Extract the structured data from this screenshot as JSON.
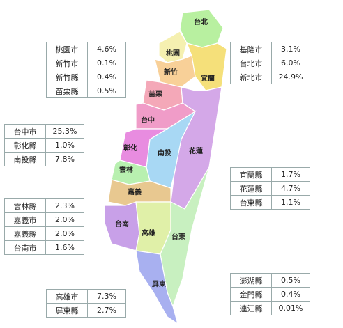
{
  "regions": [
    {
      "label": "台北"
    },
    {
      "label": "桃園"
    },
    {
      "label": "宜蘭"
    },
    {
      "label": "新竹"
    },
    {
      "label": "苗栗"
    },
    {
      "label": "台中"
    },
    {
      "label": "花蓮"
    },
    {
      "label": "南投"
    },
    {
      "label": "彰化"
    },
    {
      "label": "雲林"
    },
    {
      "label": "嘉義"
    },
    {
      "label": "台南"
    },
    {
      "label": "高雄"
    },
    {
      "label": "台東"
    },
    {
      "label": "屏東"
    }
  ],
  "tables": [
    {
      "rows": [
        [
          "桃園市",
          "4.6%"
        ],
        [
          "新竹市",
          "0.1%"
        ],
        [
          "新竹縣",
          "0.4%"
        ],
        [
          "苗栗縣",
          "0.5%"
        ]
      ]
    },
    {
      "rows": [
        [
          "基隆市",
          "3.1%"
        ],
        [
          "台北市",
          "6.0%"
        ],
        [
          "新北市",
          "24.9%"
        ]
      ]
    },
    {
      "rows": [
        [
          "台中市",
          "25.3%"
        ],
        [
          "彰化縣",
          "1.0%"
        ],
        [
          "南投縣",
          "7.8%"
        ]
      ]
    },
    {
      "rows": [
        [
          "宜蘭縣",
          "1.7%"
        ],
        [
          "花蓮縣",
          "4.7%"
        ],
        [
          "台東縣",
          "1.1%"
        ]
      ]
    },
    {
      "rows": [
        [
          "雲林縣",
          "2.3%"
        ],
        [
          "嘉義市",
          "2.0%"
        ],
        [
          "嘉義縣",
          "2.0%"
        ],
        [
          "台南市",
          "1.6%"
        ]
      ]
    },
    {
      "rows": [
        [
          "高雄市",
          "7.3%"
        ],
        [
          "屏東縣",
          "2.7%"
        ]
      ]
    },
    {
      "rows": [
        [
          "澎湖縣",
          "0.5%"
        ],
        [
          "金門縣",
          "0.4%"
        ],
        [
          "連江縣",
          "0.01%"
        ]
      ]
    }
  ]
}
